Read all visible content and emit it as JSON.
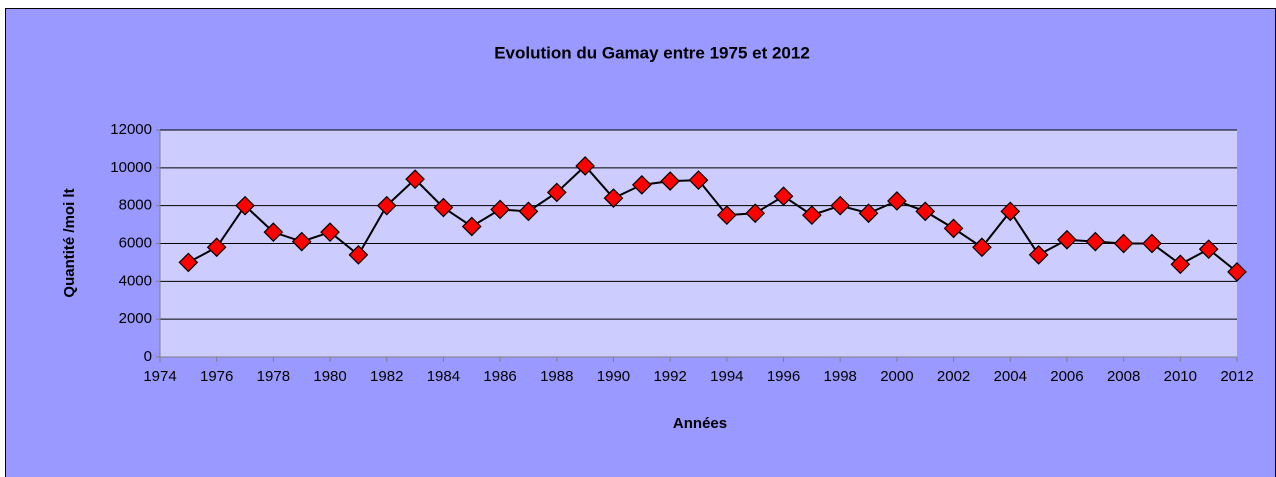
{
  "chart_data": {
    "type": "line",
    "title": "Evolution du Gamay  entre 1975 et 2012",
    "x_label": "Années",
    "y_label": "Quantité /moi lt",
    "x": [
      1975,
      1976,
      1977,
      1978,
      1979,
      1980,
      1981,
      1982,
      1983,
      1984,
      1985,
      1986,
      1987,
      1988,
      1989,
      1990,
      1991,
      1992,
      1993,
      1994,
      1995,
      1996,
      1997,
      1998,
      1999,
      2000,
      2001,
      2002,
      2003,
      2004,
      2005,
      2006,
      2007,
      2008,
      2009,
      2010,
      2011,
      2012
    ],
    "values": [
      5000,
      5800,
      8000,
      6600,
      6100,
      6600,
      5400,
      8000,
      9400,
      7900,
      6900,
      7800,
      7700,
      8700,
      10100,
      8400,
      9100,
      9300,
      9350,
      7500,
      7600,
      8500,
      7500,
      8000,
      7600,
      8250,
      7700,
      6800,
      5800,
      7700,
      5400,
      6200,
      6100,
      6000,
      6000,
      4900,
      5700,
      4500
    ],
    "color": "#ff0000",
    "line_color": "#000000",
    "xlim": [
      1974,
      2012
    ],
    "xticks": [
      1974,
      1976,
      1978,
      1980,
      1982,
      1984,
      1986,
      1988,
      1990,
      1992,
      1994,
      1996,
      1998,
      2000,
      2002,
      2004,
      2006,
      2008,
      2010,
      2012
    ],
    "ylim": [
      0,
      12000
    ],
    "yticks": [
      0,
      2000,
      4000,
      6000,
      8000,
      10000,
      12000
    ],
    "grid": true
  }
}
